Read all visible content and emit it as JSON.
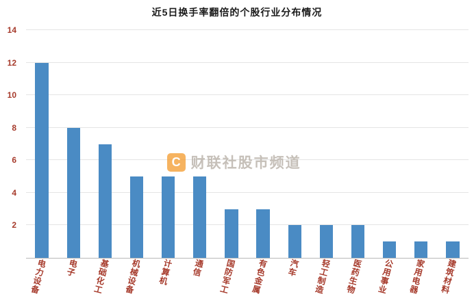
{
  "chart_data": {
    "type": "bar",
    "title": "近5日换手率翻倍的个股行业分布情况",
    "categories": [
      "电力设备",
      "电子",
      "基础化工",
      "机械设备",
      "计算机",
      "通信",
      "国防军工",
      "有色金属",
      "汽车",
      "轻工制造",
      "医药生物",
      "公用事业",
      "家用电器",
      "建筑材料"
    ],
    "values": [
      12,
      8,
      7,
      5,
      5,
      5,
      3,
      3,
      2,
      2,
      2,
      1,
      1,
      1
    ],
    "xlabel": "",
    "ylabel": "",
    "ylim": [
      0,
      14
    ],
    "y_ticks": [
      2,
      4,
      6,
      8,
      10,
      12,
      14
    ],
    "grid": true,
    "legend": "none",
    "bar_color": "#4a8bc4",
    "tick_color": "#a63a2b"
  },
  "watermark": {
    "logo_letter": "C",
    "text": "财联社股市频道",
    "logo_color": "#f39a2b"
  }
}
